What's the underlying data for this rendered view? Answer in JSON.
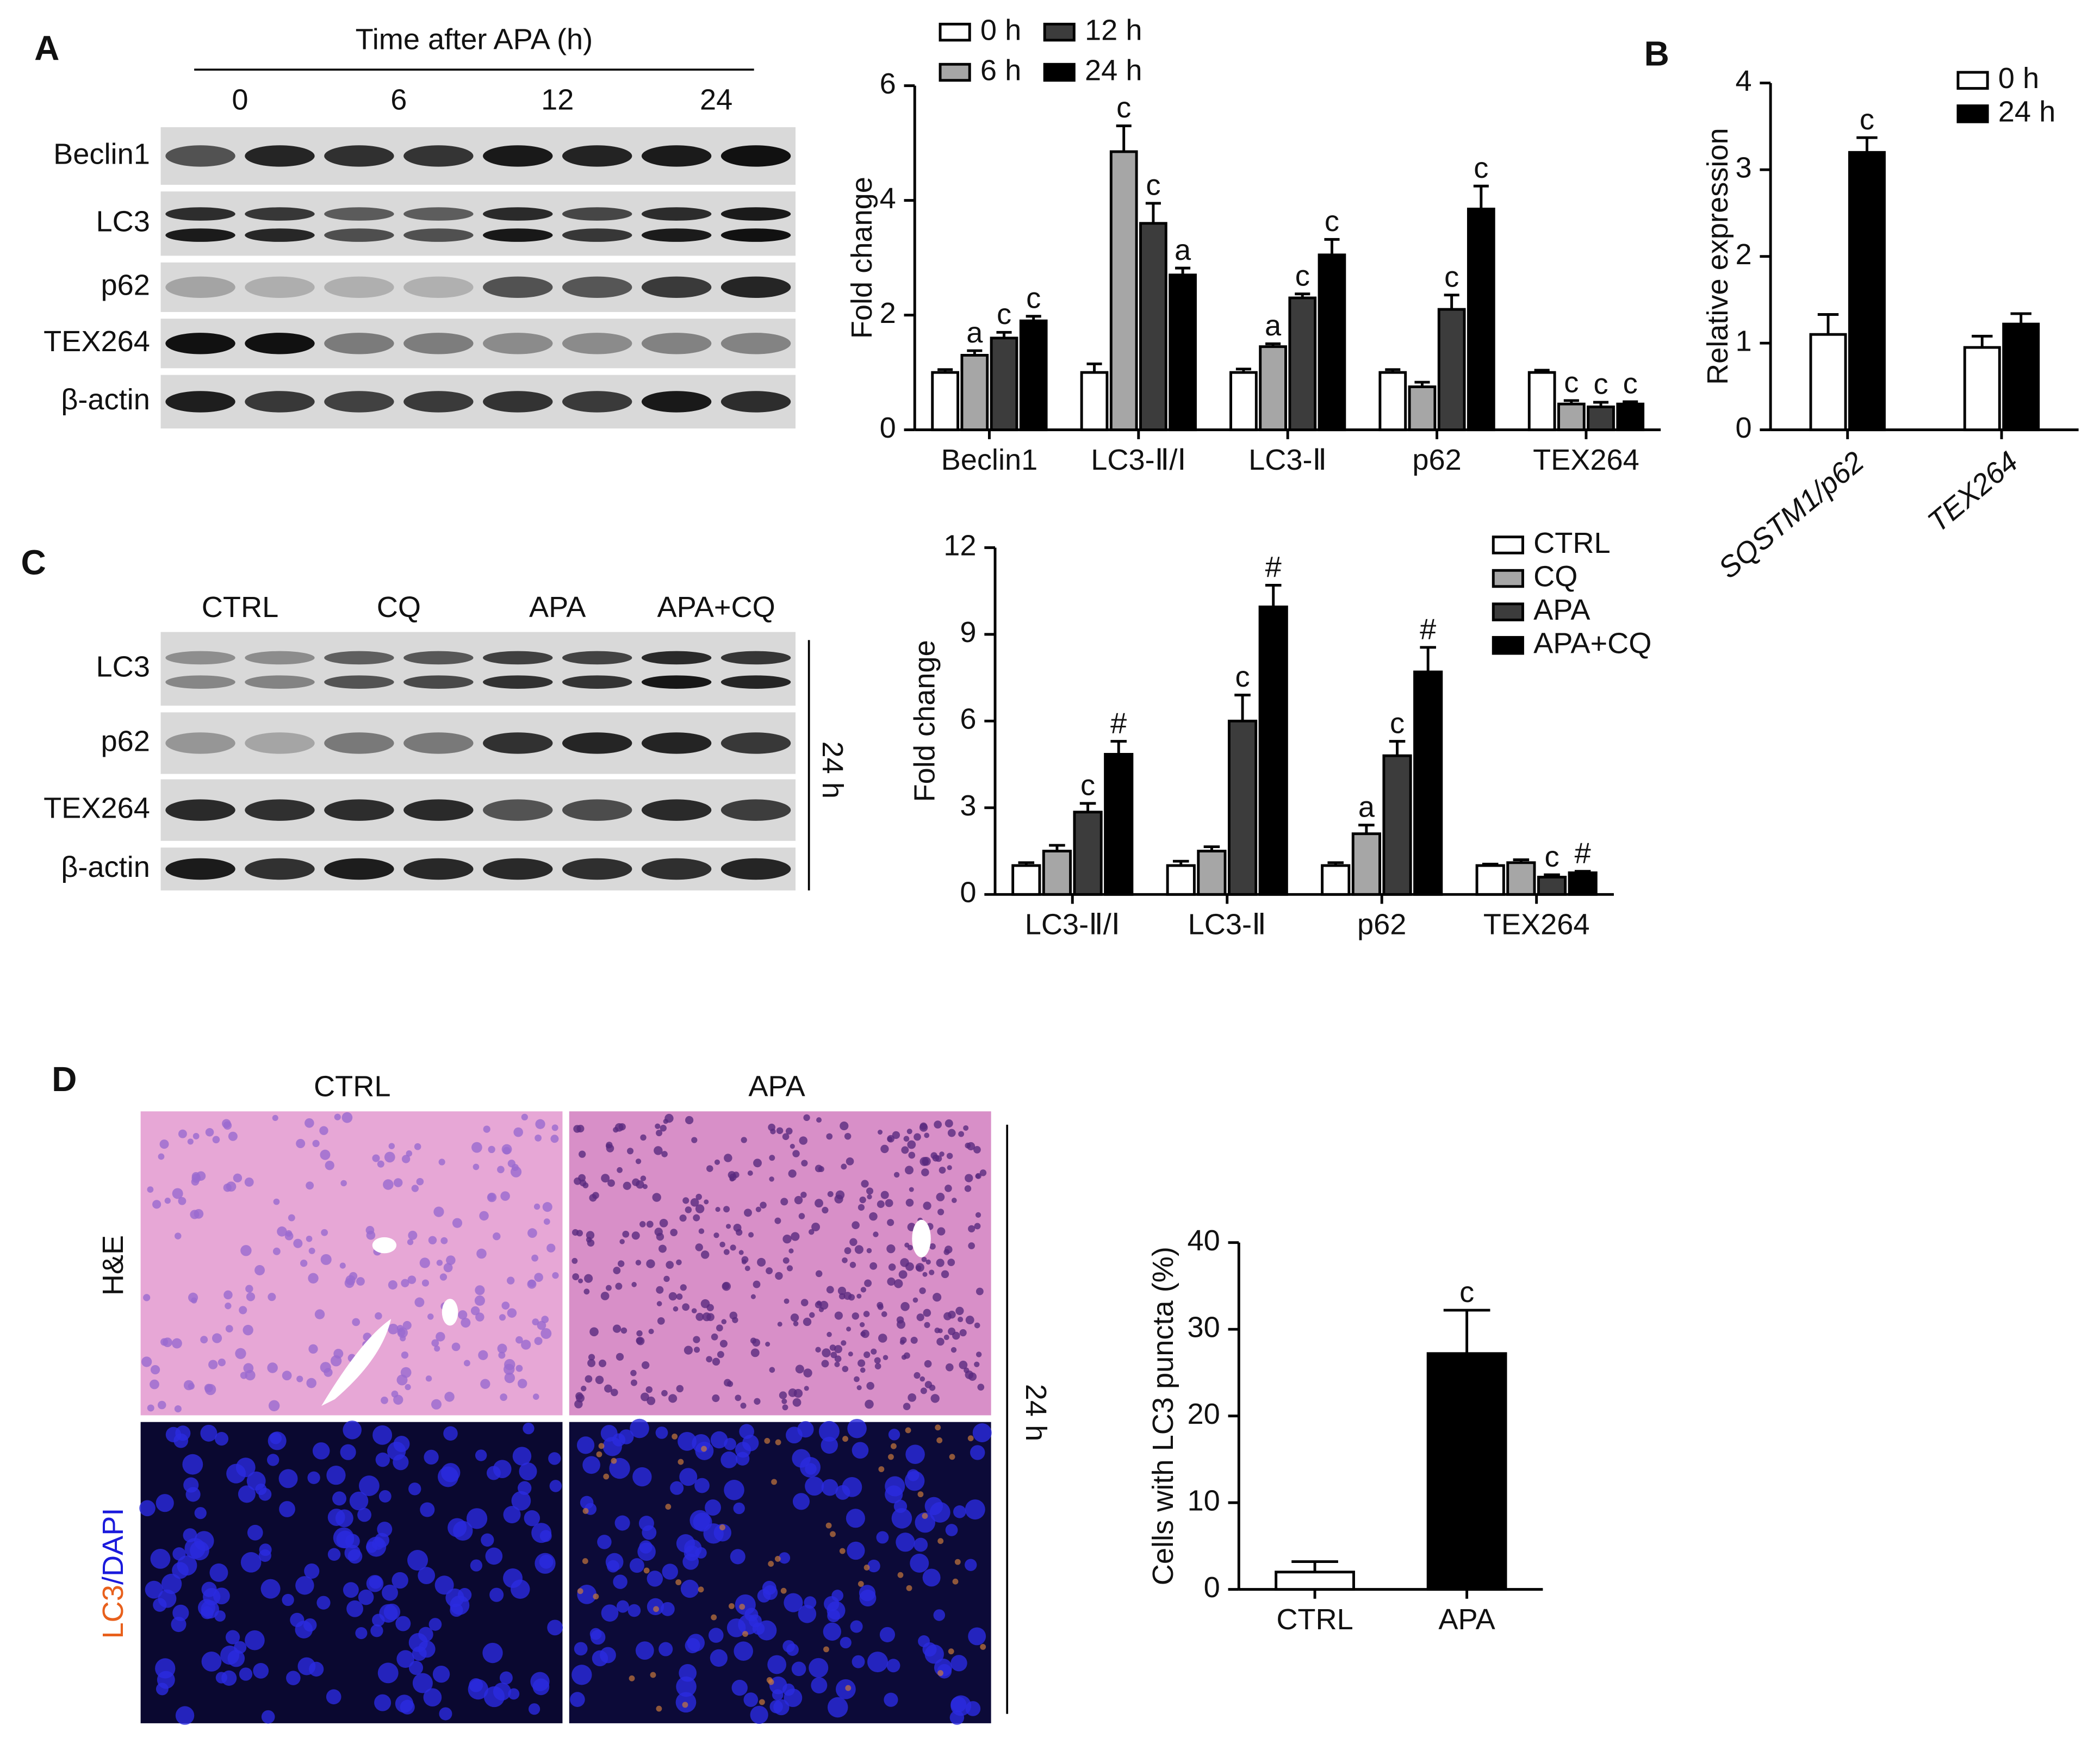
{
  "panels": {
    "A": {
      "letter": "A",
      "blot_header": "Time after APA (h)",
      "lanes": [
        "0",
        "6",
        "12",
        "24"
      ],
      "rows": [
        "Beclin1",
        "LC3",
        "p62",
        "TEX264",
        "β-actin"
      ]
    },
    "B": {
      "letter": "B"
    },
    "C": {
      "letter": "C",
      "lanes": [
        "CTRL",
        "CQ",
        "APA",
        "APA+CQ"
      ],
      "rows": [
        "LC3",
        "p62",
        "TEX264",
        "β-actin"
      ],
      "side_label": "24 h"
    },
    "D": {
      "letter": "D",
      "columns": [
        "CTRL",
        "APA"
      ],
      "stain_he": "H&E",
      "stain_if": [
        "LC3",
        "/DAPI"
      ],
      "side_label": "24 h"
    }
  },
  "chart_data": [
    {
      "type": "bar",
      "ylabel": "Fold change",
      "categories": [
        "Beclin1",
        "LC3-Ⅱ/Ⅰ",
        "LC3-Ⅱ",
        "p62",
        "TEX264"
      ],
      "ylim": [
        0,
        6
      ],
      "yticks": [
        0,
        2,
        4,
        6
      ],
      "series": [
        {
          "name": "0 h",
          "color": "#ffffff",
          "values": [
            1,
            1,
            1,
            1,
            1
          ],
          "errors": [
            0.05,
            0.15,
            0.06,
            0.05,
            0.04
          ],
          "annotations": [
            null,
            null,
            null,
            null,
            null
          ]
        },
        {
          "name": "6 h",
          "color": "#a6a6a6",
          "values": [
            1.3,
            4.85,
            1.45,
            0.75,
            0.45
          ],
          "errors": [
            0.08,
            0.45,
            0.05,
            0.08,
            0.06
          ],
          "annotations": [
            "a",
            "c",
            "a",
            null,
            "c"
          ]
        },
        {
          "name": "12 h",
          "color": "#3c3c3c",
          "values": [
            1.6,
            3.6,
            2.3,
            2.1,
            0.4
          ],
          "errors": [
            0.1,
            0.35,
            0.07,
            0.25,
            0.08
          ],
          "annotations": [
            "c",
            "c",
            "c",
            "c",
            "c"
          ]
        },
        {
          "name": "24 h",
          "color": "#000000",
          "values": [
            1.9,
            2.7,
            3.05,
            3.85,
            0.45
          ],
          "errors": [
            0.08,
            0.12,
            0.27,
            0.4,
            0.04
          ],
          "annotations": [
            "c",
            "a",
            "c",
            "c",
            "c"
          ]
        }
      ]
    },
    {
      "type": "bar",
      "ylabel": "Relative expression",
      "categories": [
        "SQSTM1/p62",
        "TEX264"
      ],
      "ylim": [
        0,
        4
      ],
      "yticks": [
        0,
        1,
        2,
        3,
        4
      ],
      "series": [
        {
          "name": "0 h",
          "color": "#ffffff",
          "values": [
            1.1,
            0.95
          ],
          "errors": [
            0.23,
            0.13
          ],
          "annotations": [
            null,
            null
          ]
        },
        {
          "name": "24 h",
          "color": "#000000",
          "values": [
            3.2,
            1.22
          ],
          "errors": [
            0.17,
            0.12
          ],
          "annotations": [
            "c",
            null
          ]
        }
      ]
    },
    {
      "type": "bar",
      "ylabel": "Fold change",
      "categories": [
        "LC3-Ⅱ/Ⅰ",
        "LC3-Ⅱ",
        "p62",
        "TEX264"
      ],
      "ylim": [
        0,
        12
      ],
      "yticks": [
        0,
        3,
        6,
        9,
        12
      ],
      "series": [
        {
          "name": "CTRL",
          "color": "#ffffff",
          "values": [
            1,
            1,
            1,
            1
          ],
          "errors": [
            0.1,
            0.15,
            0.1,
            0.05
          ],
          "annotations": [
            null,
            null,
            null,
            null
          ]
        },
        {
          "name": "CQ",
          "color": "#a6a6a6",
          "values": [
            1.5,
            1.5,
            2.1,
            1.1
          ],
          "errors": [
            0.2,
            0.15,
            0.3,
            0.1
          ],
          "annotations": [
            null,
            null,
            "a",
            null
          ]
        },
        {
          "name": "APA",
          "color": "#3c3c3c",
          "values": [
            2.85,
            6.0,
            4.8,
            0.6
          ],
          "errors": [
            0.3,
            0.9,
            0.5,
            0.08
          ],
          "annotations": [
            "c",
            "c",
            "c",
            "c"
          ]
        },
        {
          "name": "APA+CQ",
          "color": "#000000",
          "values": [
            4.85,
            9.95,
            7.7,
            0.75
          ],
          "errors": [
            0.45,
            0.75,
            0.85,
            0.05
          ],
          "annotations": [
            "#",
            "#",
            "#",
            "#"
          ]
        }
      ]
    },
    {
      "type": "bar",
      "ylabel": "Cells with LC3 puncta (%)",
      "categories": [
        "CTRL",
        "APA"
      ],
      "ylim": [
        0,
        40
      ],
      "yticks": [
        0,
        10,
        20,
        30,
        40
      ],
      "values": [
        2,
        27.2
      ],
      "errors": [
        1.2,
        5
      ],
      "colors": [
        "#ffffff",
        "#000000"
      ],
      "annotations": [
        null,
        "c"
      ]
    }
  ]
}
